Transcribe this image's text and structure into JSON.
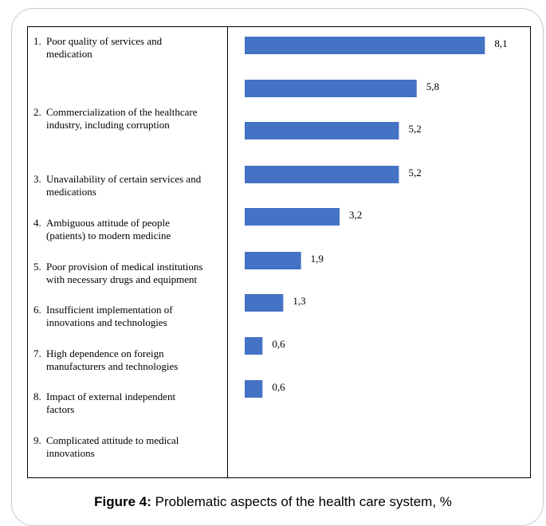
{
  "chart_data": {
    "type": "bar",
    "orientation": "horizontal",
    "categories": [
      "1. Poor quality of services and medication",
      "2. Commercialization of the healthcare industry, including corruption",
      "3. Unavailability of certain services and medications",
      "4. Ambiguous attitude of people (patients) to modern medicine",
      "5. Poor provision of medical institutions with necessary drugs and equipment",
      "6. Insufficient implementation of innovations and technologies",
      "7. High dependence on foreign manufacturers and technologies",
      "8. Impact of external independent factors",
      "9. Complicated attitude to medical innovations"
    ],
    "values": [
      8.1,
      5.8,
      5.2,
      5.2,
      3.2,
      1.9,
      1.3,
      0.6,
      0.6
    ],
    "value_labels": [
      "8,1",
      "5,8",
      "5,2",
      "5,2",
      "3,2",
      "1,9",
      "1,3",
      "0,6",
      "0,6"
    ],
    "bar_color": "#4472c4",
    "grid": false,
    "legend": "none"
  },
  "labels": [
    {
      "num": "1.",
      "line1": "Poor quality of services and",
      "line2": "medication"
    },
    {
      "num": "2.",
      "line1": "Commercialization of the healthcare",
      "line2": "industry, including corruption"
    },
    {
      "num": "3.",
      "line1": "Unavailability of certain services and",
      "line2": "medications"
    },
    {
      "num": "4.",
      "line1": "Ambiguous attitude of people",
      "line2": "(patients) to modern medicine"
    },
    {
      "num": "5.",
      "line1": "Poor provision of medical institutions",
      "line2": "with necessary drugs and equipment"
    },
    {
      "num": "6.",
      "line1": "Insufficient implementation of",
      "line2": "innovations and technologies"
    },
    {
      "num": "7.",
      "line1": "High dependence on foreign",
      "line2": "manufacturers and technologies"
    },
    {
      "num": "8.",
      "line1": "Impact of external independent",
      "line2": "factors"
    },
    {
      "num": "9.",
      "line1": "Complicated attitude to medical",
      "line2": "innovations"
    }
  ],
  "caption": {
    "prefix": "Figure 4:",
    "text": " Problematic aspects of the health care system, %"
  }
}
